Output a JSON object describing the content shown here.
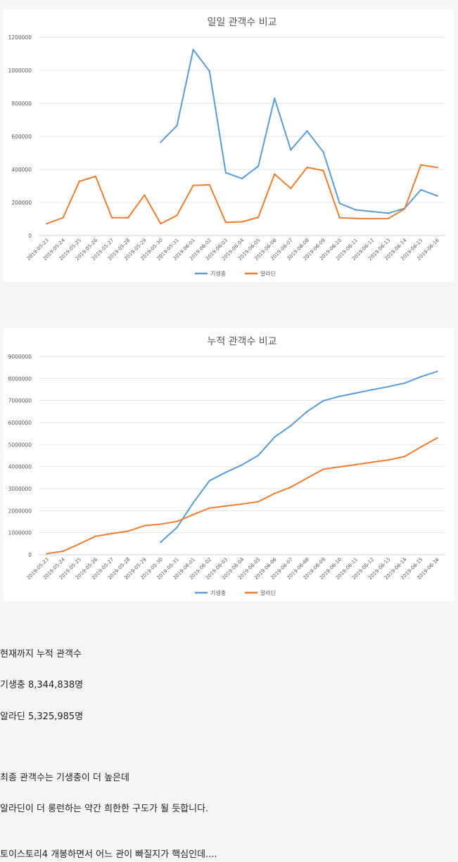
{
  "chart_data": [
    {
      "type": "line",
      "title": "일일 관객수 비교",
      "xlabel": "",
      "ylabel": "",
      "ylim": [
        0,
        1200000
      ],
      "yticks": [
        "0",
        "200000",
        "400000",
        "600000",
        "800000",
        "1000000",
        "1200000"
      ],
      "ytick_values": [
        0,
        200000,
        400000,
        600000,
        800000,
        1000000,
        1200000
      ],
      "categories": [
        "2019-05-23",
        "2019-05-24",
        "2019-05-25",
        "2019-05-26",
        "2019-05-27",
        "2019-05-28",
        "2019-05-29",
        "2019-05-30",
        "2019-05-31",
        "2019-06-01",
        "2019-06-02",
        "2019-06-03",
        "2019-06-04",
        "2019-06-05",
        "2019-06-06",
        "2019-06-07",
        "2019-06-08",
        "2019-06-09",
        "2019-06-10",
        "2019-06-11",
        "2019-06-12",
        "2019-06-13",
        "2019-06-14",
        "2019-06-15",
        "2019-06-16"
      ],
      "grid": true,
      "legend_position": "bottom",
      "series": [
        {
          "name": "기생충",
          "color": "#5b9bd5",
          "values": [
            null,
            null,
            null,
            null,
            null,
            null,
            null,
            565000,
            665000,
            1125000,
            995000,
            380000,
            345000,
            420000,
            830000,
            518000,
            633000,
            505000,
            195000,
            155000,
            145000,
            135000,
            165000,
            277000,
            240000
          ]
        },
        {
          "name": "알라딘",
          "color": "#ed7d31",
          "values": [
            72000,
            108000,
            328000,
            358000,
            108000,
            108000,
            245000,
            72000,
            122000,
            303000,
            307000,
            80000,
            83000,
            110000,
            372000,
            285000,
            413000,
            393000,
            108000,
            103000,
            102000,
            103000,
            162000,
            427000,
            412000
          ]
        }
      ]
    },
    {
      "type": "line",
      "title": "누적 관객수 비교",
      "xlabel": "",
      "ylabel": "",
      "ylim": [
        0,
        9000000
      ],
      "yticks": [
        "0",
        "1000000",
        "2000000",
        "3000000",
        "4000000",
        "5000000",
        "6000000",
        "7000000",
        "8000000",
        "9000000"
      ],
      "ytick_values": [
        0,
        1000000,
        2000000,
        3000000,
        4000000,
        5000000,
        6000000,
        7000000,
        8000000,
        9000000
      ],
      "categories": [
        "2019-05-23",
        "2019-05-24",
        "2019-05-25",
        "2019-05-26",
        "2019-05-27",
        "2019-05-28",
        "2019-05-29",
        "2019-05-30",
        "2019-05-31",
        "2019-06-01",
        "2019-06-02",
        "2019-06-03",
        "2019-06-04",
        "2019-06-05",
        "2019-06-06",
        "2019-06-07",
        "2019-06-08",
        "2019-06-09",
        "2019-06-10",
        "2019-06-11",
        "2019-06-12",
        "2019-06-13",
        "2019-06-14",
        "2019-06-15",
        "2019-06-16"
      ],
      "grid": true,
      "legend_position": "bottom",
      "series": [
        {
          "name": "기생충",
          "color": "#5b9bd5",
          "values": [
            null,
            null,
            null,
            null,
            null,
            null,
            null,
            570000,
            1240000,
            2360000,
            3360000,
            3740000,
            4080000,
            4510000,
            5340000,
            5860000,
            6500000,
            6990000,
            7190000,
            7340000,
            7490000,
            7630000,
            7790000,
            8080000,
            8320000
          ]
        },
        {
          "name": "알라딘",
          "color": "#ed7d31",
          "values": [
            50000,
            160000,
            490000,
            840000,
            960000,
            1070000,
            1320000,
            1390000,
            1510000,
            1820000,
            2120000,
            2210000,
            2300000,
            2410000,
            2780000,
            3070000,
            3480000,
            3880000,
            3990000,
            4090000,
            4200000,
            4300000,
            4460000,
            4890000,
            5300000
          ]
        }
      ]
    }
  ],
  "text": {
    "line1": "현재까지 누적 관객수",
    "line2": "기생충 8,344,838명",
    "line3": "알라딘 5,325,985명",
    "line4": "최종 관객수는 기생충이 더 높은데",
    "line5": "알라딘이 더 롱런하는 약간 희한한 구도가 될 듯합니다.",
    "line6": "토이스토리4 개봉하면서 어느 관이 빠질지가 핵심인데...."
  }
}
